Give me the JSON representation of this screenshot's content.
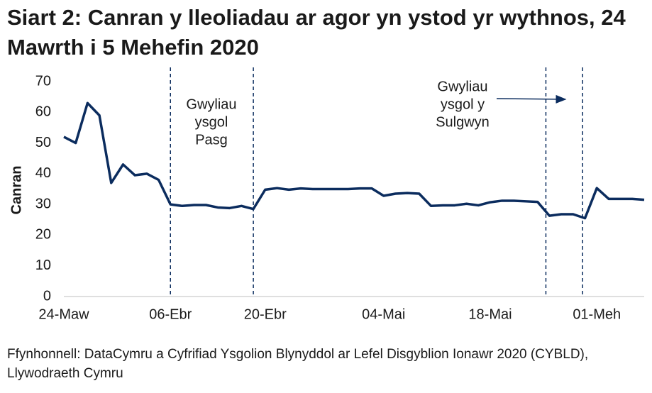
{
  "chart_data": {
    "type": "line",
    "title": "Siart 2: Canran y lleoliadau ar agor yn ystod yr wythnos, 24 Mawrth i 5 Mehefin 2020",
    "y_label": "Canran",
    "source": "Ffynhonnell: DataCymru a Cyfrifiad Ysgolion Blynyddol ar Lefel Disgyblion Ionawr 2020 (CYBLD), Llywodraeth Cymru",
    "categories": [
      "24-Maw",
      null,
      null,
      null,
      null,
      null,
      null,
      null,
      null,
      "06-Ebr",
      null,
      null,
      null,
      null,
      null,
      null,
      null,
      "20-Ebr",
      null,
      null,
      null,
      null,
      null,
      null,
      null,
      null,
      null,
      "04-Mai",
      null,
      null,
      null,
      null,
      null,
      null,
      null,
      null,
      "18-Mai",
      null,
      null,
      null,
      null,
      null,
      null,
      null,
      null,
      "01-Meh",
      null,
      null,
      null,
      null
    ],
    "values": [
      52,
      50,
      63,
      59,
      37,
      43,
      39.5,
      40,
      38,
      30,
      29.5,
      29.8,
      29.8,
      29,
      28.8,
      29.5,
      28.5,
      34.8,
      35.3,
      34.8,
      35.2,
      35,
      35,
      35,
      35,
      35.2,
      35.2,
      32.8,
      33.5,
      33.7,
      33.5,
      29.5,
      29.7,
      29.7,
      30.2,
      29.7,
      30.7,
      31.2,
      31.2,
      31,
      30.8,
      26.3,
      26.8,
      26.8,
      25.5,
      35.3,
      31.8,
      31.8,
      31.8,
      31.5
    ],
    "color": "#0b2c5e",
    "ylim": [
      0,
      70
    ],
    "yticks": [
      0,
      10,
      20,
      30,
      40,
      50,
      60,
      70
    ],
    "grid": false,
    "annotations": [
      {
        "lines": [
          "Gwyliau",
          "ysgol",
          "Pasg"
        ]
      },
      {
        "lines": [
          "Gwyliau",
          "ysgol y",
          "Sulgwyn"
        ]
      }
    ]
  }
}
